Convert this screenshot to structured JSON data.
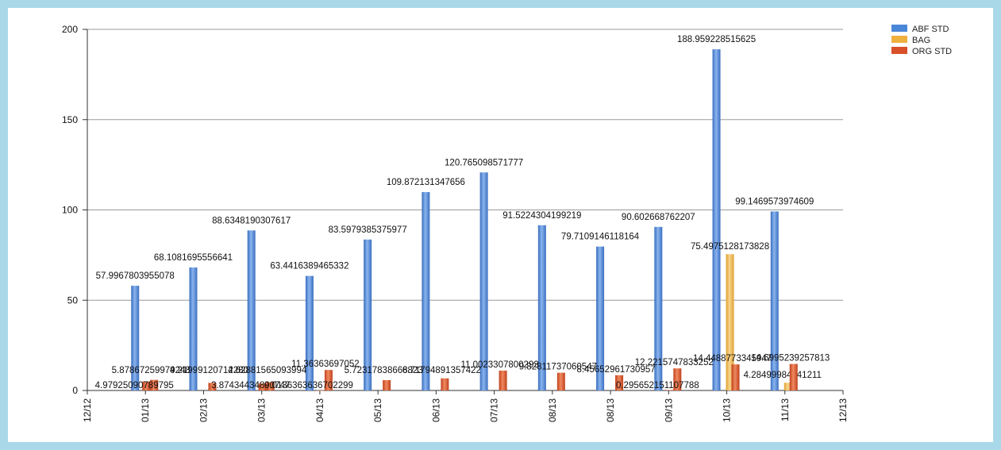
{
  "chart_data": {
    "type": "bar",
    "categories": [
      "01/13",
      "02/13",
      "03/13",
      "04/13",
      "05/13",
      "06/13",
      "07/13",
      "08/13",
      "08/13",
      "09/13",
      "10/13",
      "11/13"
    ],
    "x_axis_labels": [
      "12/12",
      "01/13",
      "02/13",
      "03/13",
      "04/13",
      "05/13",
      "06/13",
      "07/13",
      "08/13",
      "08/13",
      "09/13",
      "10/13",
      "11/13",
      "12/13"
    ],
    "ylim": [
      0,
      200
    ],
    "yticks": [
      0,
      50,
      100,
      150,
      200
    ],
    "grid": true,
    "legend_position": "top-right",
    "series": [
      {
        "name": "ABF STD",
        "color": "#4a86d8",
        "values": [
          57.9967803955078,
          68.1081695556641,
          88.6348190307617,
          63.4416389465332,
          83.5979385375977,
          109.872131347656,
          120.765098571777,
          91.5224304199219,
          79.7109146118164,
          90.602668762207,
          188.959228515625,
          99.1469573974609
        ],
        "labels": [
          "57.9967803955078",
          "68.1081695556641",
          "88.6348190307617",
          "63.4416389465332",
          "83.5979385375977",
          "109.872131347656",
          "120.765098571777",
          "91.5224304199219",
          "79.7109146118164",
          "90.602668762207",
          "188.959228515625",
          "99.1469573974609"
        ]
      },
      {
        "name": "BAG",
        "color": "#f0b040",
        "values": [
          null,
          null,
          null,
          null,
          null,
          null,
          null,
          null,
          null,
          null,
          75.4975128173828,
          4.28499984741211
        ],
        "labels": [
          "",
          "",
          "",
          "",
          "",
          "",
          "",
          "",
          "",
          "",
          "75.4975128173828",
          "4.28499984741211"
        ]
      },
      {
        "name": "ORG STD",
        "color": "#d9502a",
        "values": [
          5.87867259979248,
          4.2199912071228,
          4.62881565093994,
          11.36363697052,
          5.72317838668823,
          6.71794891357422,
          11.0023307800293,
          9.82811737060547,
          8.45652961730957,
          12.2215747833252,
          14.4488773345947,
          14.6995239257813
        ],
        "labels": [
          "5.87867259979248",
          "4.21999120712280",
          "4.62881565093994",
          "11.36363697052",
          "5.72317838668823",
          "6.71794891357422",
          "11.0023307800293",
          "9.82811737060547",
          "8.45652961730957",
          "12.2215747833252",
          "14.4488773345947",
          "14.6995239257813"
        ]
      },
      {
        "name": "",
        "color": "#d9502a",
        "values": [
          4.97925090789795,
          null,
          3.87434434890747,
          0.0136363636702299,
          null,
          null,
          null,
          null,
          null,
          0.295652151107788,
          null,
          null
        ],
        "labels": [
          "4.97925090789795",
          "",
          "3.87434434890747",
          "0.0136363636702299",
          "",
          "",
          "",
          "",
          "",
          "0.295652151107788",
          "",
          ""
        ]
      }
    ]
  }
}
